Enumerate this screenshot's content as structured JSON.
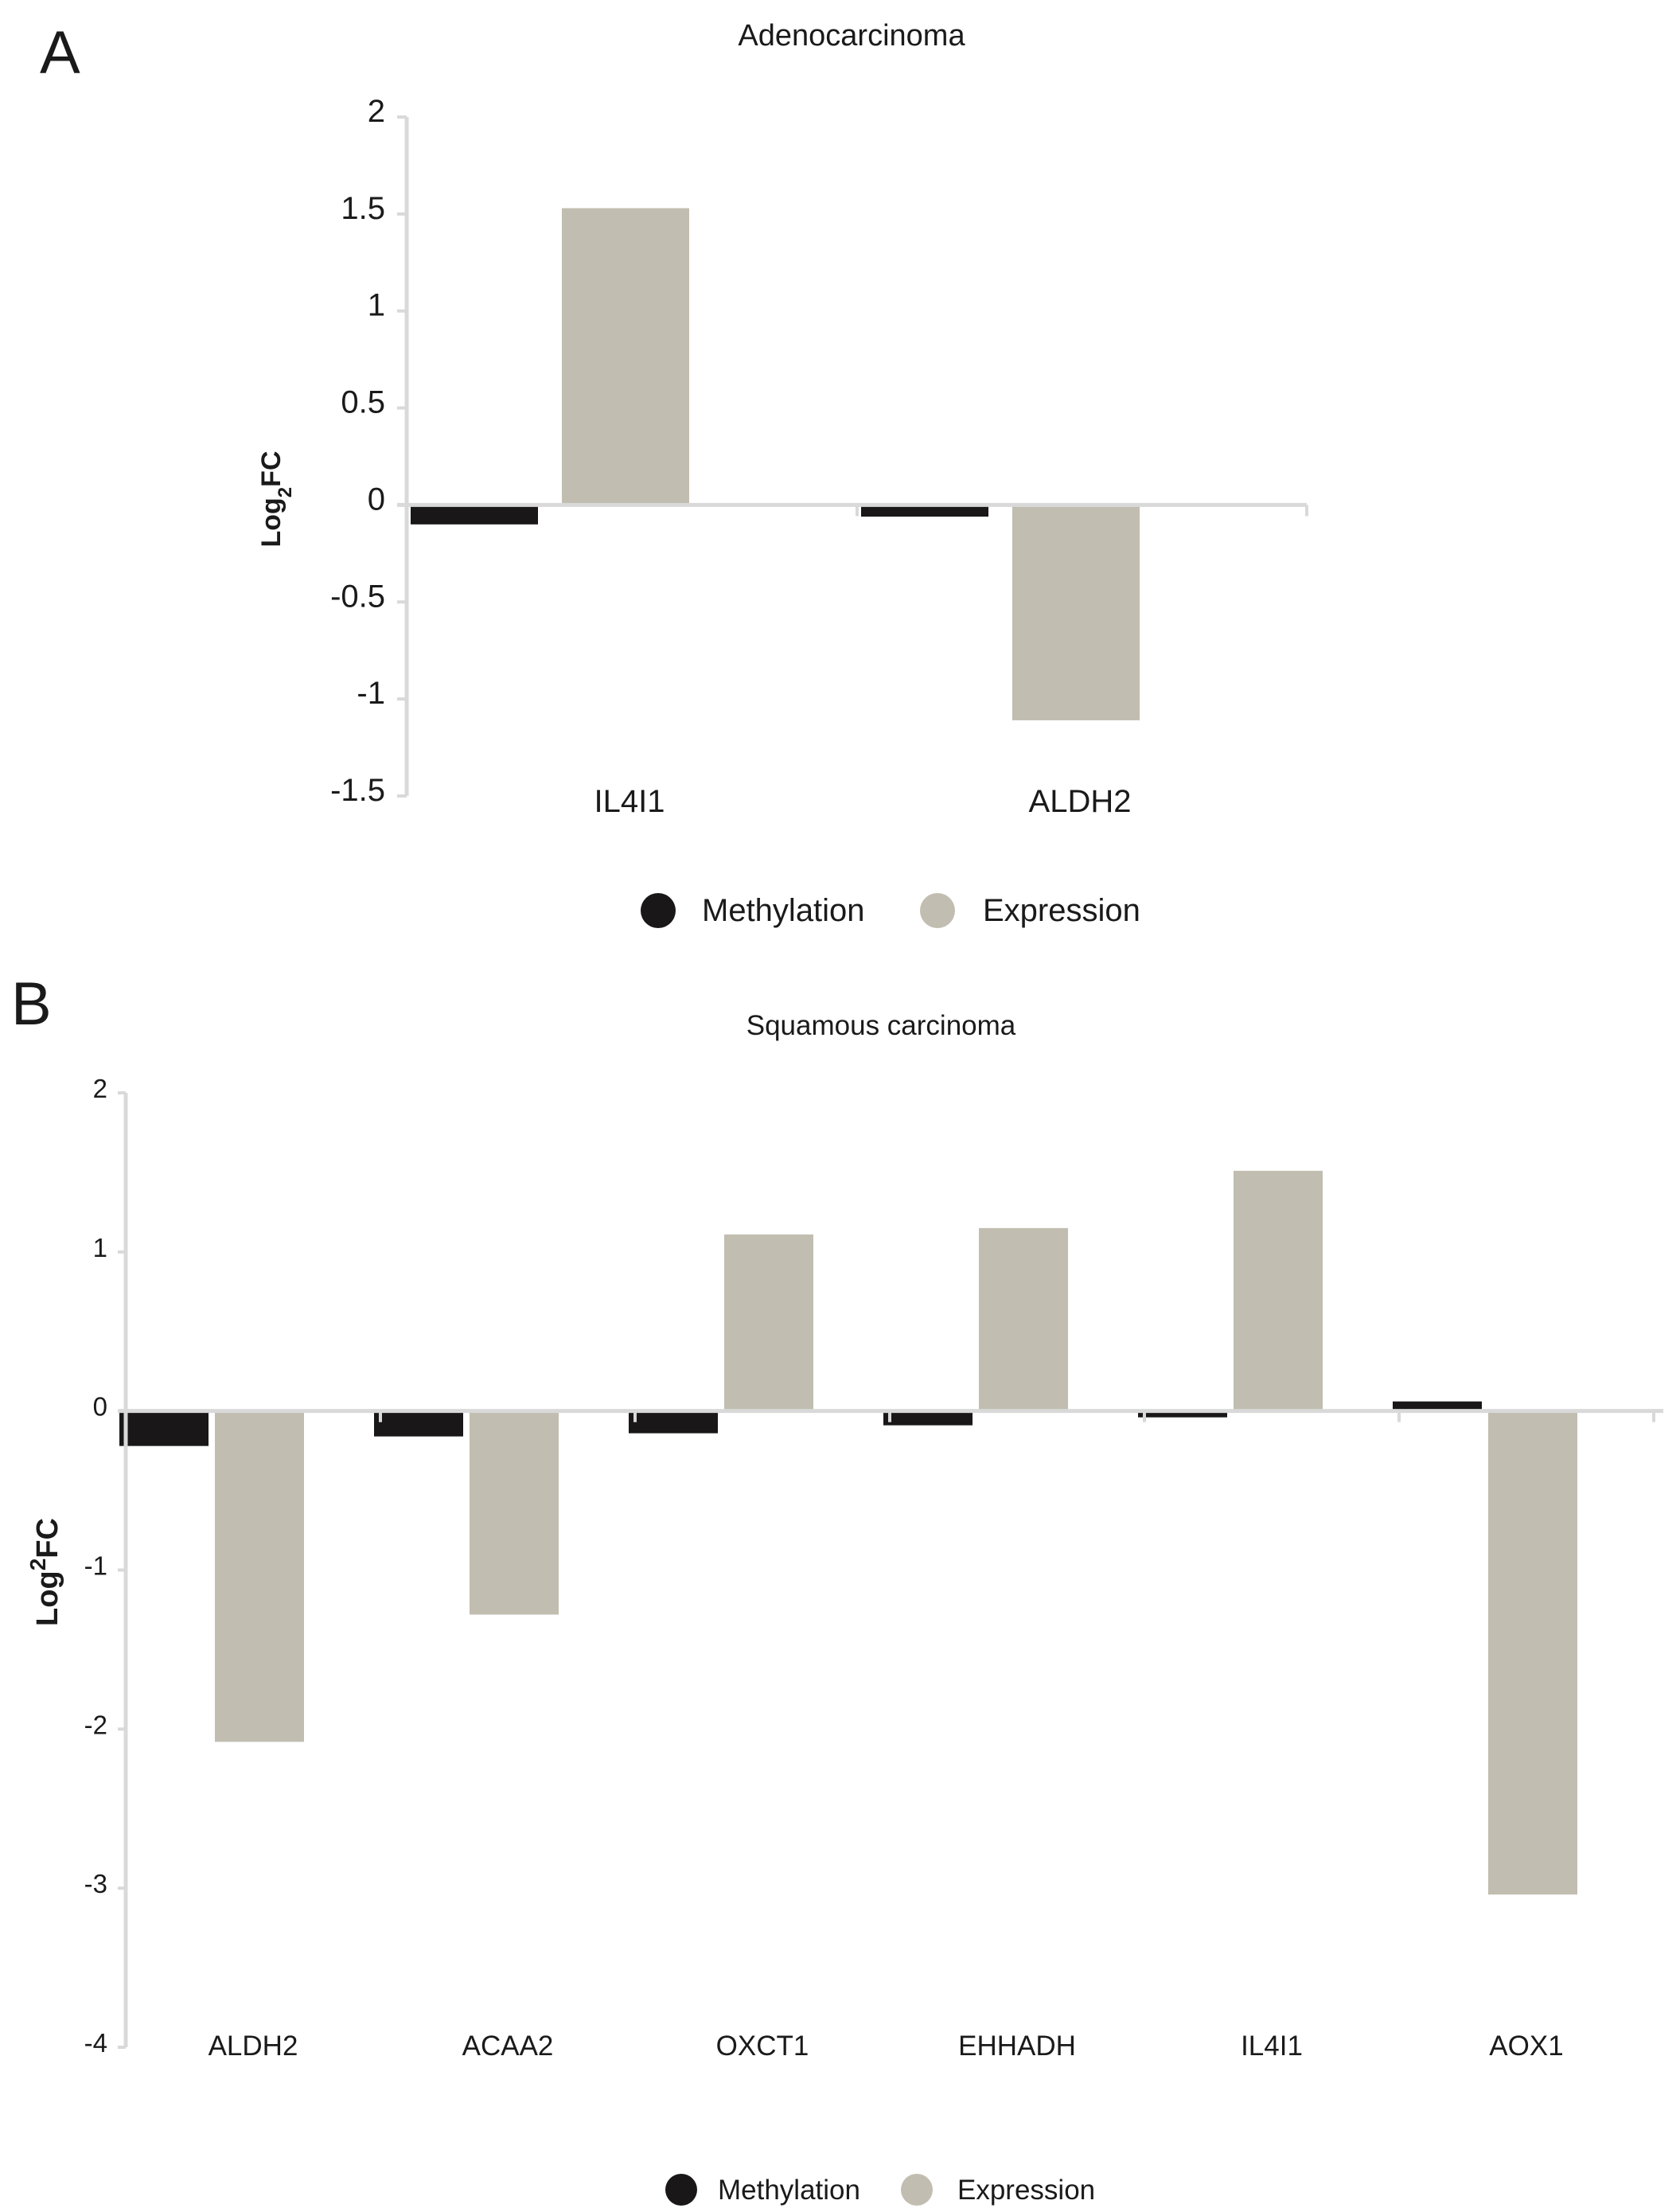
{
  "colors": {
    "methylation": "#1a1718",
    "expression": "#c1bdb0",
    "axis": "#d9d9d9"
  },
  "chart_data": [
    {
      "panel": "A",
      "type": "bar",
      "title": "Adenocarcinoma",
      "ylabel_main": "Log",
      "ylabel_sub": "2",
      "ylabel_rest": "FC",
      "xlabel": "",
      "ylim": [
        -1.5,
        2
      ],
      "yticks": [
        2,
        1.5,
        1,
        0.5,
        0,
        -0.5,
        -1,
        -1.5
      ],
      "ytick_labels": [
        "2",
        "1.5",
        "1",
        "0.5",
        "0",
        "-0.5",
        "-1",
        "-1.5"
      ],
      "categories": [
        "IL4I1",
        "ALDH2"
      ],
      "series": [
        {
          "name": "Methylation",
          "values": [
            -0.1,
            -0.06
          ]
        },
        {
          "name": "Expression",
          "values": [
            1.53,
            -1.11
          ]
        }
      ],
      "grid": false,
      "legend": "bottom-center"
    },
    {
      "panel": "B",
      "type": "bar",
      "title": "Squamous carcinoma",
      "ylabel_main": "Log",
      "ylabel_sub": "2",
      "ylabel_rest": "FC",
      "xlabel": "",
      "ylim": [
        -4,
        2
      ],
      "yticks": [
        2,
        1,
        0,
        -1,
        -2,
        -3,
        -4
      ],
      "ytick_labels": [
        "2",
        "1",
        "0",
        "-1",
        "-2",
        "-3",
        "-4"
      ],
      "categories": [
        "ALDH2",
        "ACAA2",
        "OXCT1",
        "EHHADH",
        "IL4I1",
        "AOX1"
      ],
      "series": [
        {
          "name": "Methylation",
          "values": [
            -0.22,
            -0.16,
            -0.14,
            -0.09,
            -0.04,
            0.06
          ]
        },
        {
          "name": "Expression",
          "values": [
            -2.08,
            -1.28,
            1.11,
            1.15,
            1.51,
            -3.04
          ]
        }
      ],
      "grid": false,
      "legend": "bottom-center"
    }
  ]
}
